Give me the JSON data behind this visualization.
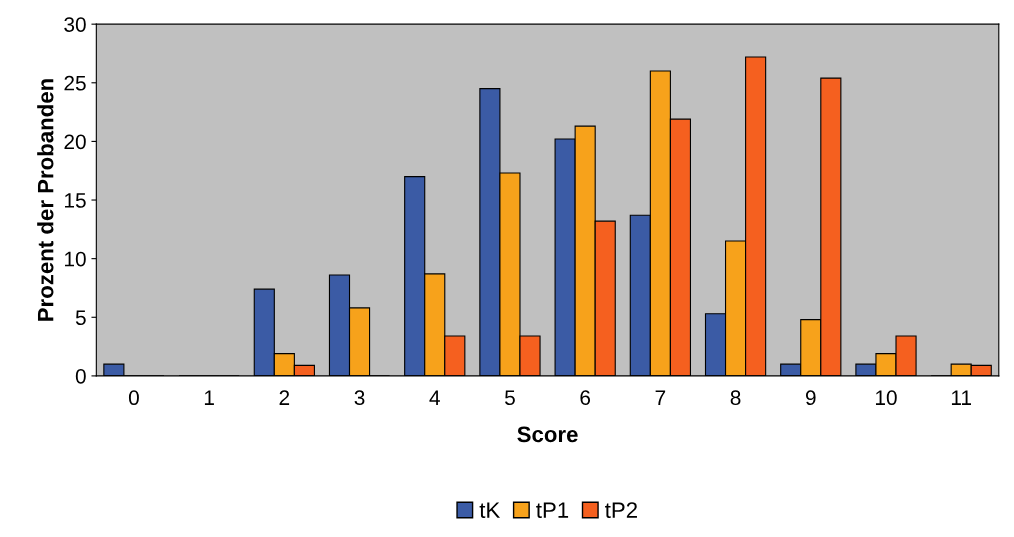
{
  "chart_data": {
    "type": "bar",
    "xlabel": "Score",
    "ylabel": "Prozent der Probanden",
    "categories": [
      "0",
      "1",
      "2",
      "3",
      "4",
      "5",
      "6",
      "7",
      "8",
      "9",
      "10",
      "11"
    ],
    "series": [
      {
        "name": "tK",
        "color": "#3b5ba5",
        "values": [
          1.0,
          0,
          7.4,
          8.6,
          17.0,
          24.5,
          20.2,
          13.7,
          5.3,
          1.0,
          1.0,
          0
        ]
      },
      {
        "name": "tP1",
        "color": "#f7a21b",
        "values": [
          0,
          0,
          1.9,
          5.8,
          8.7,
          17.3,
          21.3,
          26.0,
          11.5,
          4.8,
          1.9,
          1.0
        ]
      },
      {
        "name": "tP2",
        "color": "#f5601f",
        "values": [
          0,
          0,
          0.9,
          0,
          3.4,
          3.4,
          13.2,
          21.9,
          27.2,
          25.4,
          3.4,
          0.9
        ]
      }
    ],
    "ylim": [
      0,
      30
    ],
    "yticks": [
      0,
      5,
      10,
      15,
      20,
      25,
      30
    ],
    "grid": false,
    "legend": "bottom"
  }
}
